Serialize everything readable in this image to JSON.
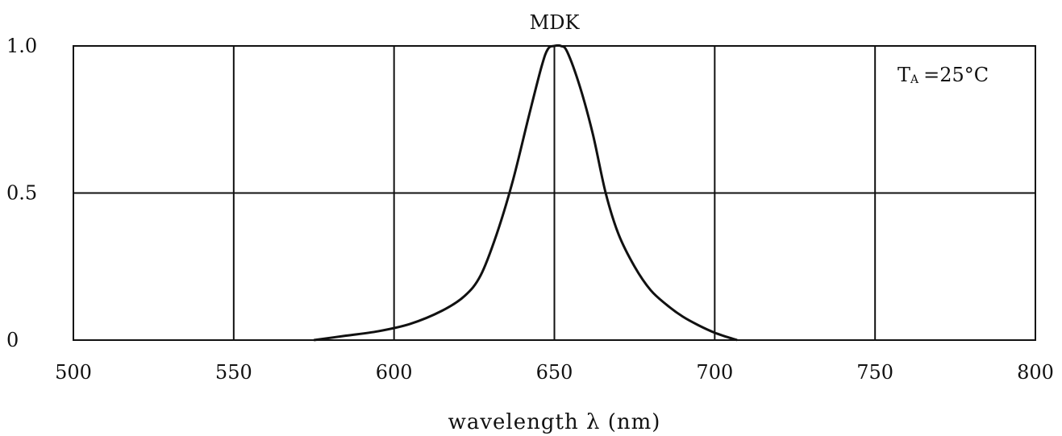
{
  "chart_data": {
    "type": "line",
    "title": "MDK",
    "xlabel": "wavelength λ (nm)",
    "ylabel": "",
    "xlim": [
      500,
      800
    ],
    "ylim": [
      0,
      1.0
    ],
    "grid": true,
    "x_ticks": [
      "500",
      "550",
      "600",
      "650",
      "700",
      "750",
      "800"
    ],
    "y_ticks": [
      "0",
      "0.5",
      "1.0"
    ],
    "annotation": {
      "main": "T",
      "sub": "A",
      "rest": "=25°C"
    },
    "series": [
      {
        "x": [
          575,
          585,
          595,
          605,
          615,
          622,
          627,
          632,
          637,
          642,
          646,
          648,
          650,
          652,
          654,
          658,
          662,
          666,
          670,
          675,
          680,
          685,
          690,
          695,
          700,
          704,
          707
        ],
        "y": [
          0,
          0.015,
          0.03,
          0.055,
          0.1,
          0.15,
          0.22,
          0.36,
          0.54,
          0.76,
          0.93,
          0.99,
          1.0,
          1.0,
          0.98,
          0.86,
          0.7,
          0.5,
          0.36,
          0.25,
          0.17,
          0.12,
          0.08,
          0.05,
          0.025,
          0.01,
          0
        ]
      }
    ],
    "colors": {
      "line": "#111111",
      "grid": "#111111",
      "background": "#ffffff"
    }
  }
}
